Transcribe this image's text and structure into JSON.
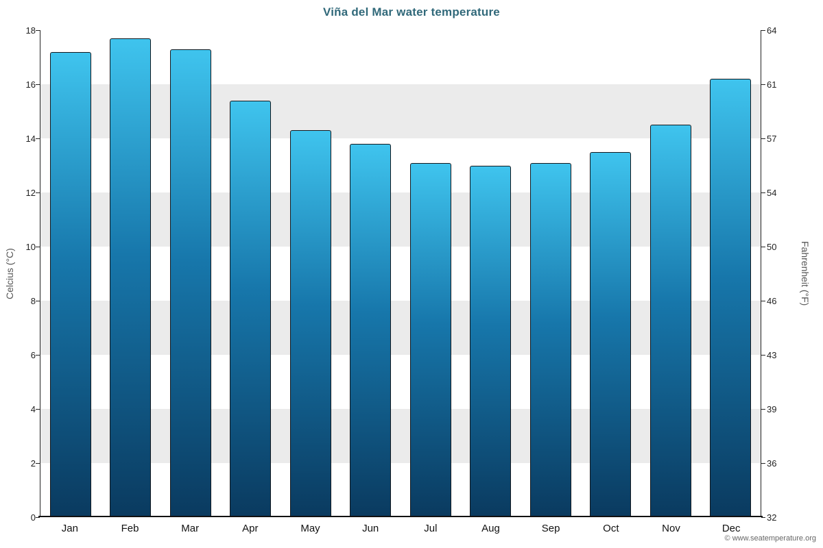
{
  "title": "Viña del Mar water temperature",
  "footer": "© www.seatemperature.org",
  "chart_data": {
    "type": "bar",
    "title": "Viña del Mar water temperature",
    "categories": [
      "Jan",
      "Feb",
      "Mar",
      "Apr",
      "May",
      "Jun",
      "Jul",
      "Aug",
      "Sep",
      "Oct",
      "Nov",
      "Dec"
    ],
    "values": [
      17.2,
      17.7,
      17.3,
      15.4,
      14.3,
      13.8,
      13.1,
      13.0,
      13.1,
      13.5,
      14.5,
      16.2
    ],
    "unit": "°C",
    "ylabel_left": "Celcius (°C)",
    "ylabel_right": "Fahrenheit (°F)",
    "ylim": [
      0,
      18
    ],
    "yticks_celsius": [
      0,
      2,
      4,
      6,
      8,
      10,
      12,
      14,
      16,
      18
    ],
    "yticks_fahrenheit": [
      "32",
      "36",
      "39",
      "43",
      "46",
      "50",
      "54",
      "57",
      "61",
      "64"
    ],
    "grid": "alternating-bands",
    "legend": "none",
    "colors": {
      "bar_gradient_top": "#3fc4ee",
      "bar_gradient_bottom": "#0a3a5f",
      "bar_border": "#14181d",
      "band_gray": "#ebebeb",
      "title_color": "#31697a"
    }
  }
}
